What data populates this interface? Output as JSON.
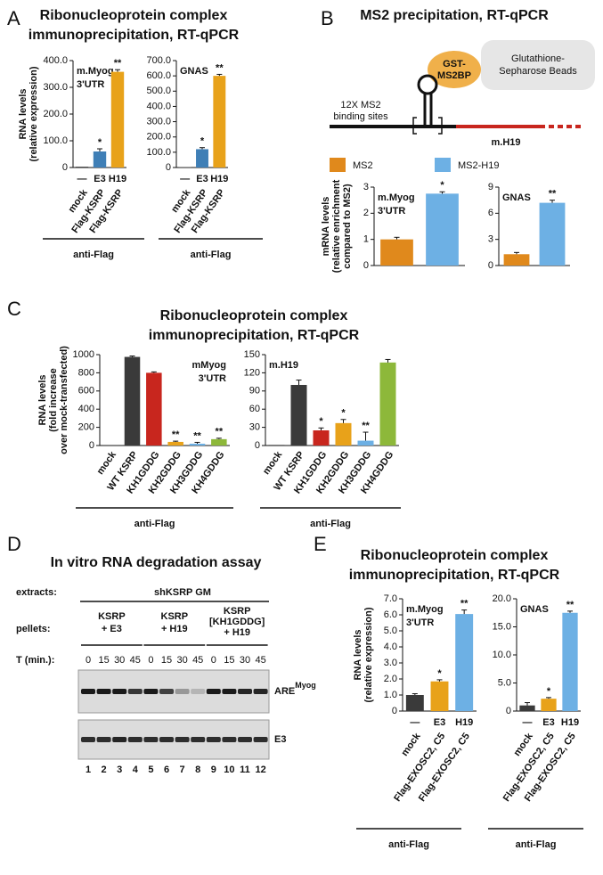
{
  "panels": {
    "A": {
      "letter": "A",
      "title": [
        "Ribonucleoprotein complex",
        "immunoprecipitation, RT-qPCR"
      ]
    },
    "B": {
      "letter": "B",
      "title": [
        "MS2 precipitation, RT-qPCR"
      ],
      "diagram": {
        "protein": [
          "GST-",
          "MS2BP"
        ],
        "beads": [
          "Glutathione-",
          "Sepharose Beads"
        ],
        "sites": [
          "12X MS2",
          "binding sites"
        ],
        "rna": "m.H19"
      },
      "legend": [
        {
          "name": "MS2",
          "color": "#e0891c"
        },
        {
          "name": "MS2-H19",
          "color": "#6db0e4"
        }
      ]
    },
    "C": {
      "letter": "C",
      "title": [
        "Ribonucleoprotein complex",
        "immunoprecipitation, RT-qPCR"
      ]
    },
    "D": {
      "letter": "D",
      "title": [
        "In vitro RNA degradation assay"
      ],
      "extracts_label": "extracts:",
      "extracts": "shKSRP GM",
      "pellets_label": "pellets:",
      "pellets": [
        [
          "KSRP",
          "+ E3"
        ],
        [
          "KSRP",
          "+ H19"
        ],
        [
          "KSRP",
          "[KH1GDDG]",
          "+ H19"
        ]
      ],
      "time_label": "T (min.):",
      "times": [
        0,
        15,
        30,
        45,
        0,
        15,
        30,
        45,
        0,
        15,
        30,
        45
      ],
      "probes": [
        {
          "name": "ARE",
          "sup": "Myog"
        },
        {
          "name": "E3"
        }
      ],
      "lanes": [
        1,
        2,
        3,
        4,
        5,
        6,
        7,
        8,
        9,
        10,
        11,
        12
      ]
    },
    "E": {
      "letter": "E",
      "title": [
        "Ribonucleoprotein complex",
        "immunoprecipitation, RT-qPCR"
      ]
    }
  },
  "chart_data": [
    {
      "type": "bar",
      "label": [
        "m.Myog",
        "3'UTR"
      ],
      "ylabel": [
        "RNA levels",
        "(relative expression)"
      ],
      "categories": [
        "mock",
        "Flag-KSRP",
        "Flag-KSRP"
      ],
      "sublabels": [
        "—",
        "E3",
        "H19"
      ],
      "values": [
        3,
        60,
        358
      ],
      "errors": [
        null,
        10,
        8
      ],
      "annotations": [
        null,
        "*",
        "**"
      ],
      "colors": [
        "#3a3a3a",
        "#3f7fb6",
        "#e8a21a"
      ],
      "ylim": [
        0,
        400
      ],
      "yticks": [
        0,
        {
          "value": 100,
          "label": "100.0"
        },
        {
          "value": 200,
          "label": "200.0"
        },
        {
          "value": 300,
          "label": "300.0"
        },
        {
          "value": 400,
          "label": "400.0"
        }
      ],
      "group_label": "anti-Flag"
    },
    {
      "type": "bar",
      "label": [
        "GNAS"
      ],
      "categories": [
        "mock",
        "Flag-KSRP",
        "Flag-KSRP"
      ],
      "sublabels": [
        "—",
        "E3",
        "H19"
      ],
      "values": [
        3,
        120,
        600
      ],
      "errors": [
        null,
        10,
        10
      ],
      "annotations": [
        null,
        "*",
        "**"
      ],
      "colors": [
        "#3a3a3a",
        "#3f7fb6",
        "#e8a21a"
      ],
      "ylim": [
        0,
        700
      ],
      "yticks": [
        0,
        {
          "value": 100,
          "label": "100.0"
        },
        {
          "value": 200,
          "label": "200.0"
        },
        {
          "value": 300,
          "label": "300.0"
        },
        {
          "value": 400,
          "label": "400.0"
        },
        {
          "value": 500,
          "label": "500.0"
        },
        {
          "value": 600,
          "label": "600.0"
        },
        {
          "value": 700,
          "label": "700.0"
        }
      ],
      "group_label": "anti-Flag"
    },
    {
      "type": "bar",
      "label": [
        "m.Myog",
        "3'UTR"
      ],
      "ylabel": [
        "mRNA levels",
        "(relative enrichment",
        "compared to MS2)"
      ],
      "categories": [
        null,
        null
      ],
      "values": [
        1,
        2.75
      ],
      "errors": [
        0.08,
        0.07
      ],
      "annotations": [
        null,
        "*"
      ],
      "colors": [
        "#e0891c",
        "#6db0e4"
      ],
      "ylim": [
        0,
        3
      ],
      "yticks": [
        0,
        1,
        2,
        3
      ]
    },
    {
      "type": "bar",
      "label": [
        "GNAS"
      ],
      "categories": [
        null,
        null
      ],
      "values": [
        1.3,
        7.2
      ],
      "errors": [
        0.2,
        0.3
      ],
      "annotations": [
        null,
        "**"
      ],
      "colors": [
        "#e0891c",
        "#6db0e4"
      ],
      "ylim": [
        0,
        9
      ],
      "yticks": [
        0,
        3,
        6,
        9
      ]
    },
    {
      "type": "bar",
      "label": [
        "mMyog",
        "3'UTR"
      ],
      "ylabel": [
        "RNA levels",
        "(fold increase",
        "over mock-transfected)"
      ],
      "categories": [
        "mock",
        "WT KSRP",
        "KH1GDDG",
        "KH2GDDG",
        "KH3GDDG",
        "KH4GDDG"
      ],
      "values": [
        1,
        975,
        800,
        40,
        20,
        70
      ],
      "errors": [
        null,
        10,
        10,
        8,
        15,
        10
      ],
      "annotations": [
        null,
        null,
        null,
        "**",
        "**",
        "**"
      ],
      "colors": [
        "#3a3a3a",
        "#3a3a3a",
        "#c8261e",
        "#e8a21a",
        "#6db0e4",
        "#8db83a"
      ],
      "ylim": [
        0,
        1000
      ],
      "yticks": [
        0,
        200,
        400,
        600,
        800,
        1000
      ],
      "group_label": "anti-Flag"
    },
    {
      "type": "bar",
      "label": [
        "m.H19"
      ],
      "categories": [
        "mock",
        "WT KSRP",
        "KH1GDDG",
        "KH2GDDG",
        "KH3GDDG",
        "KH4GDDG"
      ],
      "values": [
        1,
        100,
        25,
        37,
        8,
        137
      ],
      "errors": [
        null,
        8,
        4,
        6,
        14,
        5
      ],
      "annotations": [
        null,
        null,
        "*",
        "*",
        "**",
        null
      ],
      "colors": [
        "#3a3a3a",
        "#3a3a3a",
        "#c8261e",
        "#e8a21a",
        "#6db0e4",
        "#8db83a"
      ],
      "ylim": [
        0,
        150
      ],
      "yticks": [
        0,
        30,
        60,
        90,
        120,
        150
      ],
      "group_label": "anti-Flag"
    },
    {
      "type": "bar",
      "label": [
        "m.Myog",
        "3'UTR"
      ],
      "ylabel": [
        "RNA levels",
        "(relative expression)"
      ],
      "categories": [
        "mock",
        "Flag-EXOSC2, C5",
        "Flag-EXOSC2, C5"
      ],
      "sublabels": [
        "—",
        "E3",
        "H19"
      ],
      "values": [
        1,
        1.85,
        6.05
      ],
      "errors": [
        0.08,
        0.1,
        0.25
      ],
      "annotations": [
        null,
        "*",
        "**"
      ],
      "colors": [
        "#3a3a3a",
        "#e8a21a",
        "#6db0e4"
      ],
      "ylim": [
        0,
        7
      ],
      "yticks": [
        0,
        {
          "value": 1,
          "label": "1.0"
        },
        {
          "value": 2,
          "label": "2.0"
        },
        {
          "value": 3,
          "label": "3.0"
        },
        {
          "value": 4,
          "label": "4.0"
        },
        {
          "value": 5,
          "label": "5.0"
        },
        {
          "value": 6,
          "label": "6.0"
        },
        {
          "value": 7,
          "label": "7.0"
        }
      ],
      "group_label": "anti-Flag"
    },
    {
      "type": "bar",
      "label": [
        "GNAS"
      ],
      "categories": [
        "mock",
        "Flag-EXOSC2, C5",
        "Flag-EXOSC2, C5"
      ],
      "sublabels": [
        "—",
        "E3",
        "H19"
      ],
      "values": [
        1,
        2.2,
        17.5
      ],
      "errors": [
        0.5,
        0.2,
        0.3
      ],
      "annotations": [
        null,
        "*",
        "**"
      ],
      "colors": [
        "#3a3a3a",
        "#e8a21a",
        "#6db0e4"
      ],
      "ylim": [
        0,
        20
      ],
      "yticks": [
        0,
        {
          "value": 5,
          "label": "5.0"
        },
        {
          "value": 10,
          "label": "10.0"
        },
        {
          "value": 15,
          "label": "15.0"
        },
        {
          "value": 20,
          "label": "20.0"
        }
      ],
      "group_label": "anti-Flag"
    }
  ]
}
